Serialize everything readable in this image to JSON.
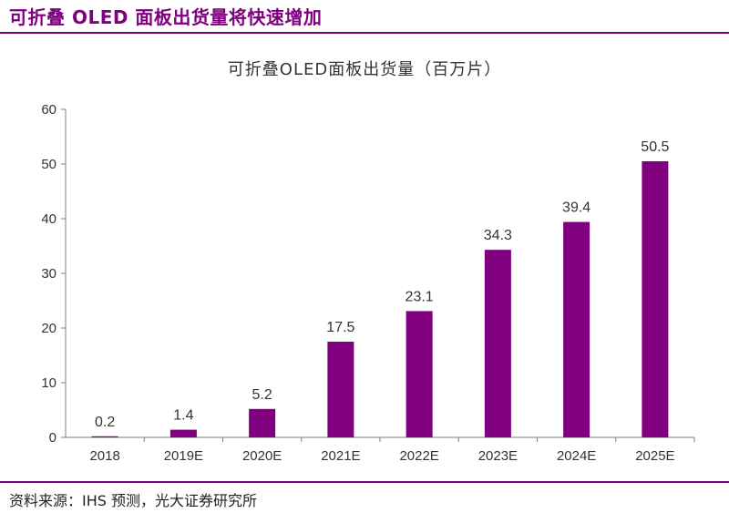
{
  "page": {
    "title": "可折叠 OLED 面板出货量将快速增加",
    "source": "资料来源：IHS 预测，光大证券研究所"
  },
  "colors": {
    "accent": "#7f007f",
    "bar": "#800080",
    "axis": "#7f7f7f",
    "text": "#333333"
  },
  "chart_data": {
    "type": "bar",
    "title": "可折叠OLED面板出货量（百万片）",
    "xlabel": "",
    "ylabel": "",
    "categories": [
      "2018",
      "2019E",
      "2020E",
      "2021E",
      "2022E",
      "2023E",
      "2024E",
      "2025E"
    ],
    "values": [
      0.2,
      1.4,
      5.2,
      17.5,
      23.1,
      34.3,
      39.4,
      50.5
    ],
    "data_labels": [
      "0.2",
      "1.4",
      "5.2",
      "17.5",
      "23.1",
      "34.3",
      "39.4",
      "50.5"
    ],
    "ylim": [
      0,
      60
    ],
    "yticks": [
      0,
      10,
      20,
      30,
      40,
      50,
      60
    ],
    "grid": false,
    "legend": "none"
  }
}
